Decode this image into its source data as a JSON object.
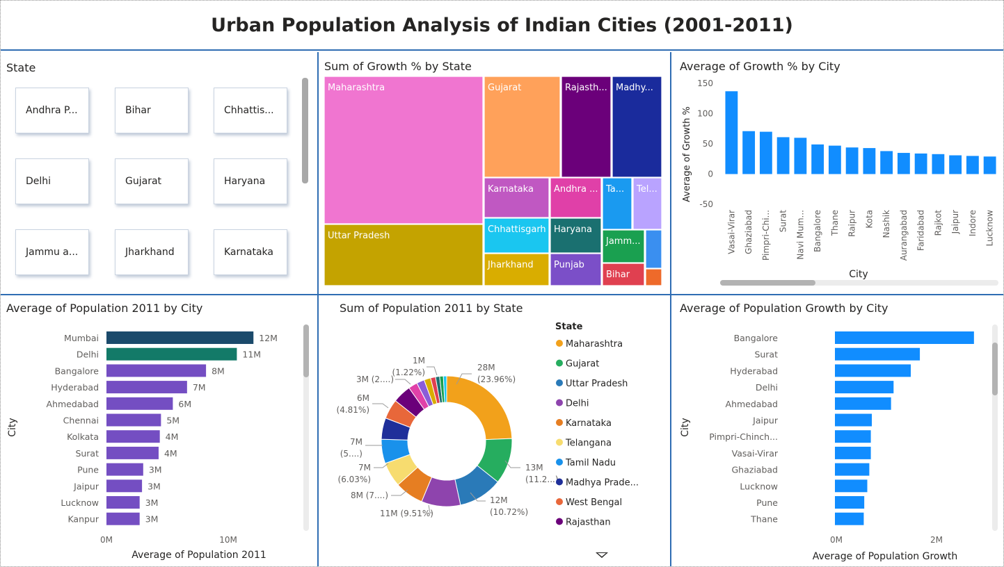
{
  "page_title": "Urban Population Analysis of Indian Cities (2001-2011)",
  "slicer": {
    "title": "State",
    "items": [
      "Andhra P...",
      "Bihar",
      "Chhattis...",
      "Delhi",
      "Gujarat",
      "Haryana",
      "Jammu a...",
      "Jharkhand",
      "Karnataka"
    ]
  },
  "chart_data": [
    {
      "id": "treemap",
      "type": "treemap",
      "title": "Sum of Growth % by State",
      "tiles": [
        {
          "label": "Maharashtra",
          "color": "#f075d0"
        },
        {
          "label": "Uttar Pradesh",
          "color": "#c4a300"
        },
        {
          "label": "Gujarat",
          "color": "#ffa15a"
        },
        {
          "label": "Rajasth...",
          "color": "#6b007a"
        },
        {
          "label": "Madhy...",
          "color": "#1a2b9c"
        },
        {
          "label": "Karnataka",
          "color": "#c058c2"
        },
        {
          "label": "Andhra ...",
          "color": "#e040a8"
        },
        {
          "label": "Ta...",
          "color": "#1a9af0"
        },
        {
          "label": "Tel...",
          "color": "#b9a3ff"
        },
        {
          "label": "Chhattisgarh",
          "color": "#1ac6f0"
        },
        {
          "label": "Haryana",
          "color": "#1a7070"
        },
        {
          "label": "Jamm...",
          "color": "#1aa050"
        },
        {
          "label": "",
          "color": "#3a8ff0"
        },
        {
          "label": "Jharkhand",
          "color": "#d9ad00"
        },
        {
          "label": "Punjab",
          "color": "#7b4fc8"
        },
        {
          "label": "Bihar",
          "color": "#e04050"
        },
        {
          "label": "",
          "color": "#ee6a2a"
        }
      ]
    },
    {
      "id": "growth-by-city",
      "type": "bar",
      "title": "Average of Growth % by City",
      "xlabel": "City",
      "ylabel": "Average of Growth %",
      "ylim": [
        -50,
        150
      ],
      "yticks": [
        150,
        100,
        50,
        0,
        -50
      ],
      "color": "#118dff",
      "categories": [
        "Vasai-Virar",
        "Ghaziabad",
        "Pimpri-Chi...",
        "Surat",
        "Navi Mum...",
        "Bangalore",
        "Thane",
        "Raipur",
        "Kota",
        "Nashik",
        "Aurangabad",
        "Faridabad",
        "Rajkot",
        "Jaipur",
        "Indore",
        "Lucknow"
      ],
      "values": [
        137,
        71,
        70,
        61,
        60,
        49,
        47,
        44,
        43,
        38,
        35,
        34,
        33,
        31,
        30,
        29
      ]
    },
    {
      "id": "population-by-city",
      "type": "bar",
      "orientation": "horizontal",
      "title": "Average of Population 2011 by City",
      "xlabel": "Average of Population 2011",
      "ylabel": "City",
      "xticks": [
        "0M",
        "10M"
      ],
      "xlim": [
        0,
        13.5
      ],
      "categories": [
        "Mumbai",
        "Delhi",
        "Bangalore",
        "Hyderabad",
        "Ahmedabad",
        "Chennai",
        "Kolkata",
        "Surat",
        "Pune",
        "Jaipur",
        "Lucknow",
        "Kanpur"
      ],
      "values": [
        12.4,
        11.0,
        8.4,
        6.8,
        5.6,
        4.6,
        4.5,
        4.4,
        3.1,
        3.0,
        2.8,
        2.8
      ],
      "labels": [
        "12M",
        "11M",
        "8M",
        "7M",
        "6M",
        "5M",
        "4M",
        "4M",
        "3M",
        "3M",
        "3M",
        "3M"
      ],
      "colors": [
        "#1b4a6b",
        "#137a68",
        "#744ec2",
        "#744ec2",
        "#744ec2",
        "#744ec2",
        "#744ec2",
        "#744ec2",
        "#744ec2",
        "#744ec2",
        "#744ec2",
        "#744ec2"
      ]
    },
    {
      "id": "population-by-state",
      "type": "pie",
      "title": "Sum of Population 2011 by State",
      "legend_title": "State",
      "slices": [
        {
          "name": "Maharashtra",
          "value": 23.96,
          "color": "#f2a11b",
          "label1": "28M",
          "label2": "(23.96%)"
        },
        {
          "name": "Gujarat",
          "value": 11.2,
          "color": "#26ad5f",
          "label1": "13M",
          "label2": "(11.2...)"
        },
        {
          "name": "Uttar Pradesh",
          "value": 10.72,
          "color": "#2a7ab8",
          "label1": "12M",
          "label2": "(10.72%)"
        },
        {
          "name": "Delhi",
          "value": 9.51,
          "color": "#8e44ad",
          "label1": "11M (9.51%)",
          "label2": ""
        },
        {
          "name": "Karnataka",
          "value": 7.0,
          "color": "#e67e22",
          "label1": "8M (7....)",
          "label2": ""
        },
        {
          "name": "Telangana",
          "value": 6.03,
          "color": "#f7dc6f",
          "label1": "7M",
          "label2": "(6.03%)"
        },
        {
          "name": "Tamil Nadu",
          "value": 5.9,
          "color": "#1991eb",
          "label1": "7M",
          "label2": "(5....)"
        },
        {
          "name": "Madhya Prade...",
          "value": 5.2,
          "color": "#1f2f9a",
          "label1": "",
          "label2": ""
        },
        {
          "name": "West Bengal",
          "value": 4.81,
          "color": "#e8673a",
          "label1": "6M",
          "label2": "(4.81%)"
        },
        {
          "name": "Rajasthan",
          "value": 4.5,
          "color": "#6b007a",
          "label1": "",
          "label2": ""
        },
        {
          "name": "",
          "value": 2.2,
          "color": "#e040a8",
          "label1": "3M (2....)",
          "label2": ""
        },
        {
          "name": "",
          "value": 1.9,
          "color": "#8a5cd8",
          "label1": "",
          "label2": ""
        },
        {
          "name": "",
          "value": 1.6,
          "color": "#d9ad00",
          "label1": "",
          "label2": ""
        },
        {
          "name": "",
          "value": 1.22,
          "color": "#e04050",
          "label1": "1M",
          "label2": "(1.22%)"
        },
        {
          "name": "",
          "value": 1.0,
          "color": "#1a7070",
          "label1": "",
          "label2": ""
        },
        {
          "name": "",
          "value": 0.9,
          "color": "#1aa050",
          "label1": "",
          "label2": ""
        },
        {
          "name": "",
          "value": 0.8,
          "color": "#1ac6f0",
          "label1": "",
          "label2": ""
        }
      ]
    },
    {
      "id": "pop-growth-by-city",
      "type": "bar",
      "orientation": "horizontal",
      "title": "Average of Population Growth by City",
      "xlabel": "Average of Population Growth",
      "ylabel": "City",
      "xticks": [
        "0M",
        "2M"
      ],
      "xlim": [
        0,
        3.0
      ],
      "color": "#118dff",
      "categories": [
        "Bangalore",
        "Surat",
        "Hyderabad",
        "Delhi",
        "Ahmedabad",
        "Jaipur",
        "Pimpri-Chinch...",
        "Vasai-Virar",
        "Ghaziabad",
        "Lucknow",
        "Pune",
        "Thane"
      ],
      "values": [
        2.75,
        1.68,
        1.5,
        1.16,
        1.11,
        0.73,
        0.71,
        0.71,
        0.68,
        0.64,
        0.58,
        0.57
      ]
    }
  ]
}
